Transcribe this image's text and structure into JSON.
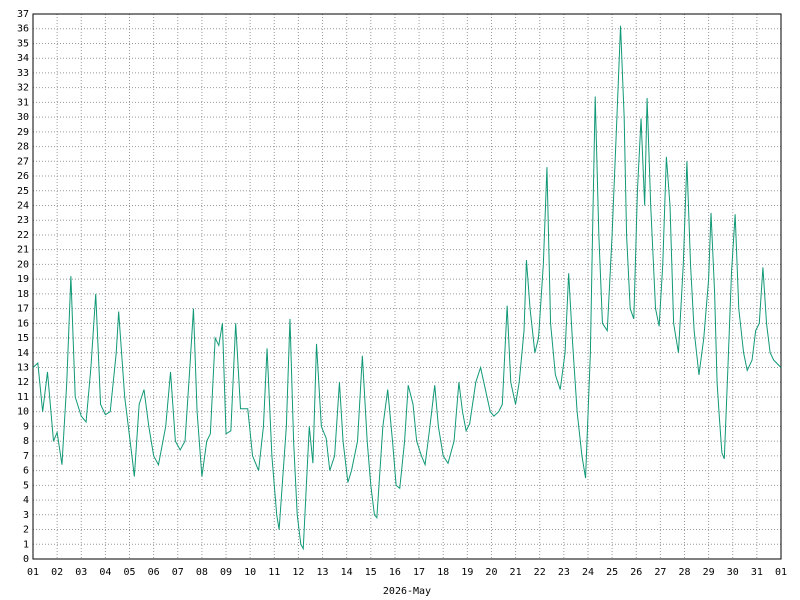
{
  "chart_data": {
    "type": "line",
    "x_label": "2026-May",
    "color": "#119977",
    "grid": true,
    "xlim": [
      0,
      31
    ],
    "xticks": [
      {
        "value": 0,
        "label": "01"
      },
      {
        "value": 1,
        "label": "02"
      },
      {
        "value": 2,
        "label": "03"
      },
      {
        "value": 3,
        "label": "04"
      },
      {
        "value": 4,
        "label": "05"
      },
      {
        "value": 5,
        "label": "06"
      },
      {
        "value": 6,
        "label": "07"
      },
      {
        "value": 7,
        "label": "08"
      },
      {
        "value": 8,
        "label": "09"
      },
      {
        "value": 9,
        "label": "10"
      },
      {
        "value": 10,
        "label": "11"
      },
      {
        "value": 11,
        "label": "12"
      },
      {
        "value": 12,
        "label": "13"
      },
      {
        "value": 13,
        "label": "14"
      },
      {
        "value": 14,
        "label": "15"
      },
      {
        "value": 15,
        "label": "16"
      },
      {
        "value": 16,
        "label": "17"
      },
      {
        "value": 17,
        "label": "18"
      },
      {
        "value": 18,
        "label": "19"
      },
      {
        "value": 19,
        "label": "20"
      },
      {
        "value": 20,
        "label": "21"
      },
      {
        "value": 21,
        "label": "22"
      },
      {
        "value": 22,
        "label": "23"
      },
      {
        "value": 23,
        "label": "24"
      },
      {
        "value": 24,
        "label": "25"
      },
      {
        "value": 25,
        "label": "26"
      },
      {
        "value": 26,
        "label": "27"
      },
      {
        "value": 27,
        "label": "28"
      },
      {
        "value": 28,
        "label": "29"
      },
      {
        "value": 29,
        "label": "30"
      },
      {
        "value": 30,
        "label": "31"
      },
      {
        "value": 31,
        "label": "01"
      }
    ],
    "ylim": [
      0,
      37
    ],
    "yticks": [
      0,
      1,
      2,
      3,
      4,
      5,
      6,
      7,
      8,
      9,
      10,
      11,
      12,
      13,
      14,
      15,
      16,
      17,
      18,
      19,
      20,
      21,
      22,
      23,
      24,
      25,
      26,
      27,
      28,
      29,
      30,
      31,
      32,
      33,
      34,
      35,
      36,
      37
    ],
    "x": [
      0,
      0.2,
      0.4,
      0.6,
      0.85,
      1.0,
      1.2,
      1.4,
      1.57,
      1.75,
      2.0,
      2.2,
      2.4,
      2.6,
      2.8,
      3.0,
      3.2,
      3.45,
      3.55,
      3.8,
      4.1,
      4.2,
      4.4,
      4.6,
      4.8,
      5.0,
      5.2,
      5.5,
      5.7,
      5.9,
      6.1,
      6.3,
      6.5,
      6.65,
      6.8,
      7.0,
      7.2,
      7.35,
      7.55,
      7.7,
      7.85,
      8.0,
      8.2,
      8.4,
      8.6,
      8.9,
      9.1,
      9.35,
      9.55,
      9.7,
      9.9,
      10.1,
      10.2,
      10.5,
      10.65,
      10.8,
      10.95,
      11.1,
      11.2,
      11.45,
      11.6,
      11.75,
      11.95,
      12.15,
      12.3,
      12.5,
      12.7,
      12.85,
      13.05,
      13.2,
      13.45,
      13.65,
      13.85,
      14.0,
      14.15,
      14.25,
      14.5,
      14.7,
      14.9,
      15.05,
      15.2,
      15.4,
      15.55,
      15.75,
      15.9,
      16.1,
      16.25,
      16.45,
      16.65,
      16.8,
      17.0,
      17.2,
      17.45,
      17.65,
      17.8,
      17.95,
      18.1,
      18.35,
      18.55,
      18.75,
      18.95,
      19.1,
      19.3,
      19.45,
      19.65,
      19.8,
      20.0,
      20.15,
      20.35,
      20.45,
      20.6,
      20.8,
      20.95,
      21.15,
      21.3,
      21.45,
      21.65,
      21.85,
      22.05,
      22.2,
      22.35,
      22.55,
      22.75,
      22.9,
      23.1,
      23.2,
      23.3,
      23.45,
      23.6,
      23.8,
      24.0,
      24.2,
      24.35,
      24.5,
      24.6,
      24.75,
      24.9,
      25.05,
      25.2,
      25.35,
      25.45,
      25.6,
      25.8,
      25.95,
      26.1,
      26.25,
      26.4,
      26.55,
      26.75,
      26.95,
      27.1,
      27.25,
      27.4,
      27.6,
      27.8,
      28.0,
      28.1,
      28.25,
      28.35,
      28.45,
      28.55,
      28.65,
      28.8,
      28.95,
      29.1,
      29.25,
      29.45,
      29.6,
      29.8,
      29.95,
      30.1,
      30.25,
      30.4,
      30.55,
      30.7,
      31.0
    ],
    "values": [
      13,
      13.3,
      10,
      12.7,
      8,
      8.6,
      6.4,
      12,
      19.2,
      11,
      9.7,
      9.3,
      13,
      18,
      10.5,
      9.8,
      10,
      14,
      16.8,
      11,
      7,
      5.6,
      10.5,
      11.5,
      9,
      7,
      6.4,
      9,
      12.7,
      8,
      7.4,
      8,
      13,
      17,
      10,
      5.6,
      8,
      8.5,
      15,
      14.5,
      16,
      8.5,
      8.7,
      16,
      10.2,
      10.2,
      7,
      6,
      9,
      14.3,
      7,
      3,
      2,
      9,
      16.3,
      8,
      3,
      1,
      0.7,
      9,
      6.5,
      14.6,
      9,
      8.2,
      6,
      7,
      12,
      8,
      5.2,
      6,
      8,
      13.8,
      8,
      5,
      3,
      2.8,
      9,
      11.5,
      8,
      5,
      4.8,
      8,
      11.8,
      10.5,
      8,
      7,
      6.4,
      9,
      11.8,
      9,
      7,
      6.5,
      8,
      12,
      10,
      8.7,
      9.2,
      12,
      13,
      11.5,
      10,
      9.7,
      10,
      10.5,
      17.2,
      12,
      10.5,
      12,
      15.5,
      20.3,
      17,
      14,
      15,
      20,
      26.6,
      16,
      12.5,
      11.5,
      14,
      19.4,
      15,
      10,
      7,
      5.5,
      14,
      23,
      31.4,
      22,
      16,
      15.5,
      22,
      30,
      36.2,
      30,
      22,
      17,
      16.3,
      25,
      29.9,
      24,
      31.3,
      24,
      17,
      15.8,
      20,
      27.3,
      24,
      16,
      14,
      20,
      27,
      20,
      15.5,
      12.5,
      15,
      19,
      23.5,
      18,
      12,
      9.5,
      7.2,
      6.8,
      13,
      19.5,
      23.4,
      17,
      14,
      12.8,
      13.5,
      15.5,
      16,
      19.8,
      16,
      14,
      13.5,
      13
    ]
  }
}
